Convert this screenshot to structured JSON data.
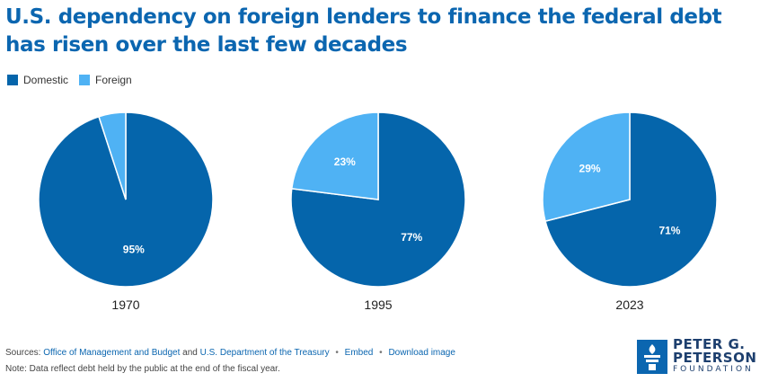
{
  "title": "U.S. dependency on foreign lenders to finance the federal debt has risen over the last few decades",
  "legend": [
    {
      "label": "Domestic",
      "color": "#0565ab"
    },
    {
      "label": "Foreign",
      "color": "#4fb2f4"
    }
  ],
  "chart_data": [
    {
      "type": "pie",
      "title": "1970",
      "slices": [
        {
          "label": "Domestic",
          "value": 95,
          "display": "95%"
        },
        {
          "label": "Foreign",
          "value": 5,
          "display": ""
        }
      ]
    },
    {
      "type": "pie",
      "title": "1995",
      "slices": [
        {
          "label": "Domestic",
          "value": 77,
          "display": "77%"
        },
        {
          "label": "Foreign",
          "value": 23,
          "display": "23%"
        }
      ]
    },
    {
      "type": "pie",
      "title": "2023",
      "slices": [
        {
          "label": "Domestic",
          "value": 71,
          "display": "71%"
        },
        {
          "label": "Foreign",
          "value": 29,
          "display": "29%"
        }
      ]
    }
  ],
  "footer": {
    "sources_prefix": "Sources:",
    "source1": "Office of Management and Budget",
    "and_text": "and",
    "source2": "U.S. Department of the Treasury",
    "embed": "Embed",
    "download": "Download image",
    "note": "Note: Data reflect debt held by the public at the end of the fiscal year."
  },
  "logo": {
    "line1": "PETER G.",
    "line2": "PETERSON",
    "line3": "FOUNDATION"
  }
}
